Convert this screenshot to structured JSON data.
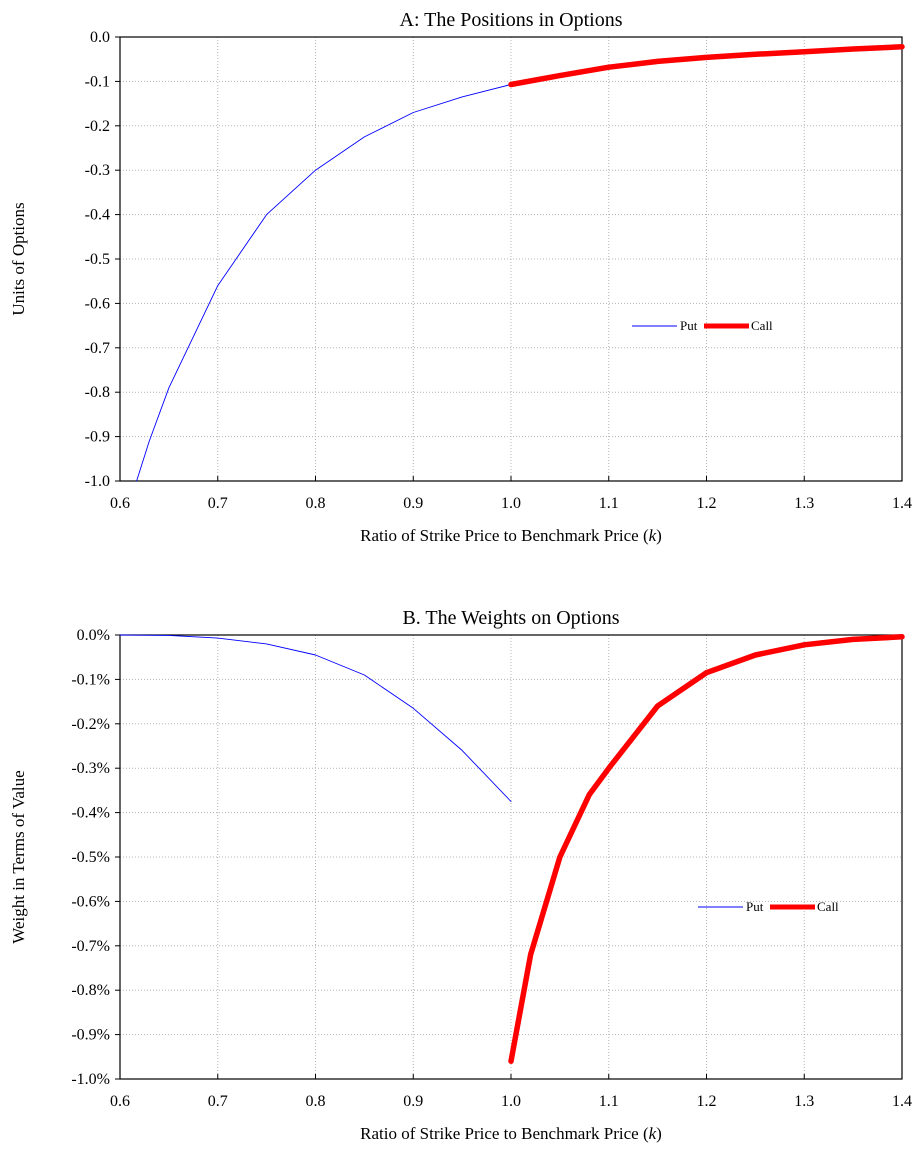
{
  "chart_data": [
    {
      "type": "line",
      "title": "A: The Positions in Options",
      "xlabel_main": "Ratio of Strike Price to Benchmark Price (",
      "xlabel_var": "k",
      "xlabel_tail": ")",
      "ylabel": "Units of Options",
      "xlim": [
        0.6,
        1.4
      ],
      "ylim": [
        -1.0,
        0.0
      ],
      "x_ticks": [
        "0.6",
        "0.7",
        "0.8",
        "0.9",
        "1.0",
        "1.1",
        "1.2",
        "1.3",
        "1.4"
      ],
      "y_ticks": [
        "0.0",
        "-0.1",
        "-0.2",
        "-0.3",
        "-0.4",
        "-0.5",
        "-0.6",
        "-0.7",
        "-0.8",
        "-0.9",
        "-1.0"
      ],
      "grid": true,
      "legend_position": "right-center",
      "series": [
        {
          "name": "Put",
          "color": "#0000ff",
          "x": [
            0.617,
            0.63,
            0.65,
            0.7,
            0.75,
            0.8,
            0.85,
            0.9,
            0.95,
            1.0
          ],
          "y": [
            -1.0,
            -0.91,
            -0.79,
            -0.56,
            -0.4,
            -0.3,
            -0.225,
            -0.17,
            -0.135,
            -0.107
          ]
        },
        {
          "name": "Call",
          "color": "#ff0000",
          "x": [
            1.0,
            1.05,
            1.1,
            1.15,
            1.2,
            1.25,
            1.3,
            1.35,
            1.4
          ],
          "y": [
            -0.107,
            -0.087,
            -0.068,
            -0.055,
            -0.046,
            -0.039,
            -0.033,
            -0.027,
            -0.022
          ]
        }
      ]
    },
    {
      "type": "line",
      "title": "B. The Weights on Options",
      "xlabel_main": "Ratio of Strike Price to Benchmark Price (",
      "xlabel_var": "k",
      "xlabel_tail": ")",
      "ylabel": "Weight in Terms of Value",
      "xlim": [
        0.6,
        1.4
      ],
      "ylim": [
        -1.0,
        0.0
      ],
      "x_ticks": [
        "0.6",
        "0.7",
        "0.8",
        "0.9",
        "1.0",
        "1.1",
        "1.2",
        "1.3",
        "1.4"
      ],
      "y_ticks": [
        "0.0%",
        "-0.1%",
        "-0.2%",
        "-0.3%",
        "-0.4%",
        "-0.5%",
        "-0.6%",
        "-0.7%",
        "-0.8%",
        "-0.9%",
        "-1.0%"
      ],
      "grid": true,
      "legend_position": "bottom-right",
      "series": [
        {
          "name": "Put",
          "color": "#0000ff",
          "x": [
            0.6,
            0.65,
            0.7,
            0.75,
            0.8,
            0.85,
            0.9,
            0.95,
            1.0
          ],
          "y": [
            0.0,
            -0.001,
            -0.007,
            -0.02,
            -0.045,
            -0.09,
            -0.165,
            -0.26,
            -0.375
          ]
        },
        {
          "name": "Call",
          "color": "#ff0000",
          "x": [
            1.0,
            1.02,
            1.05,
            1.08,
            1.1,
            1.15,
            1.2,
            1.25,
            1.3,
            1.35,
            1.4
          ],
          "y": [
            -0.96,
            -0.72,
            -0.5,
            -0.36,
            -0.3,
            -0.16,
            -0.085,
            -0.045,
            -0.022,
            -0.01,
            -0.004
          ]
        }
      ]
    }
  ]
}
